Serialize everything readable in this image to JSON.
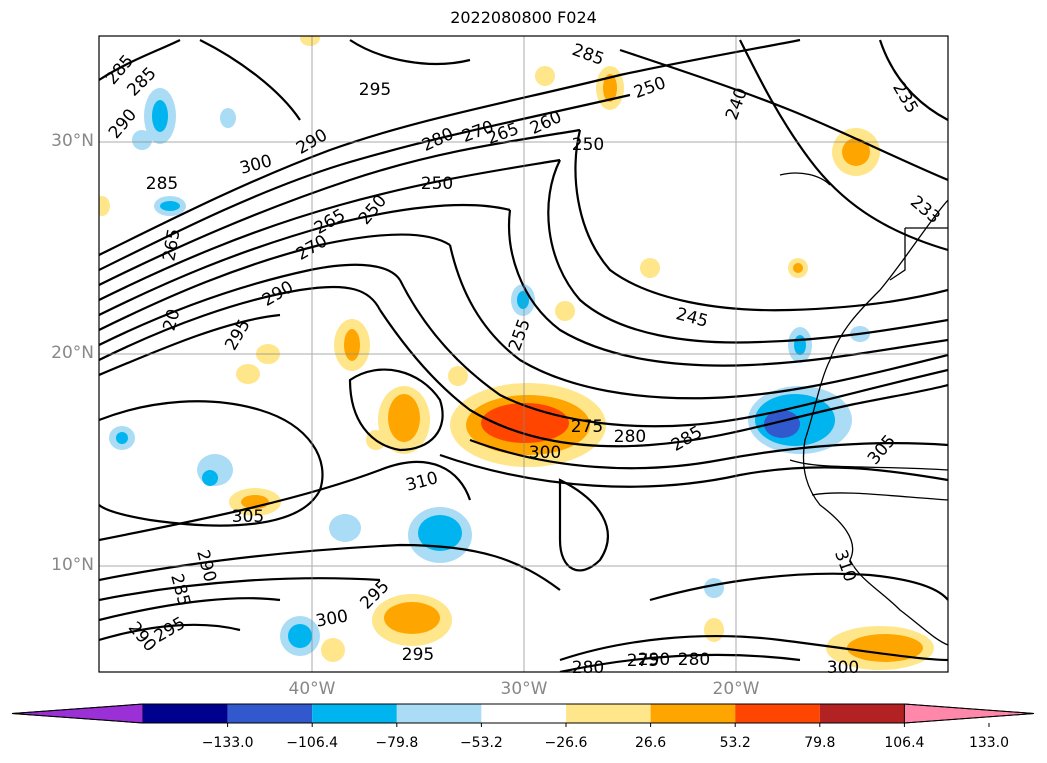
{
  "title": "2022080800 F024",
  "lat_labels": [
    "30°N",
    "20°N",
    "10°N"
  ],
  "lon_labels": [
    "40°W",
    "30°W",
    "20°W"
  ],
  "colorbar": {
    "colors": [
      "#9b30d6",
      "#00008f",
      "#3158cc",
      "#00b4ef",
      "#aadcf5",
      "#ffffff",
      "#ffe68a",
      "#ffa500",
      "#ff4500",
      "#b22222",
      "#ff88aa"
    ],
    "ticks": [
      "−133.0",
      "−106.4",
      "−79.8",
      "−53.2",
      "−26.6",
      "26.6",
      "53.2",
      "79.8",
      "106.4",
      "133.0"
    ]
  },
  "contour_labels": [
    "285",
    "285",
    "290",
    "285",
    "295",
    "300",
    "290",
    "280",
    "270",
    "265",
    "260",
    "250",
    "250",
    "240",
    "235",
    "285",
    "250",
    "233",
    "250",
    "270",
    "265",
    "265",
    "290",
    "295",
    "20",
    "255",
    "245",
    "275",
    "280",
    "285",
    "300",
    "310",
    "305",
    "305",
    "290",
    "285",
    "290",
    "295",
    "300",
    "295",
    "295",
    "280",
    "290",
    "280",
    "275",
    "300",
    "310"
  ]
}
